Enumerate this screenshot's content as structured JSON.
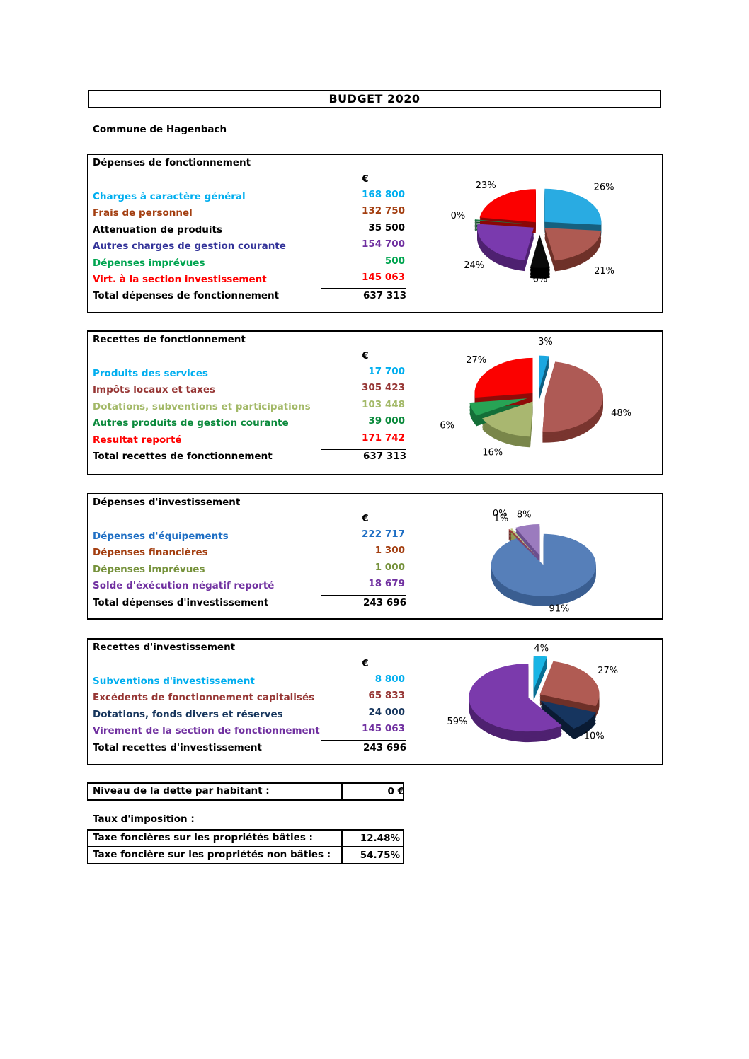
{
  "page": {
    "title": "BUDGET 2020",
    "subtitle": "Commune de Hagenbach"
  },
  "sections": [
    {
      "title": "Dépenses de fonctionnement",
      "currency": "€",
      "rows": [
        {
          "label": "Charges à caractère général",
          "value": "168 800",
          "color": "#00AEEF"
        },
        {
          "label": "Frais de personnel",
          "value": "132 750",
          "color": "#A33E10"
        },
        {
          "label": "Attenuation de produits",
          "value": "35 500",
          "color": "#000000"
        },
        {
          "label": "Autres charges de gestion courante",
          "value": "154 700",
          "color": "#333399",
          "value_color": "#7030A0"
        },
        {
          "label": "Dépenses imprévues",
          "value": "500",
          "color": "#00A550"
        },
        {
          "label": "Virt. à la section investissement",
          "value": "145 063",
          "color": "#FF0000"
        }
      ],
      "total": {
        "label": "Total dépenses de fonctionnement",
        "value": "637 313"
      },
      "chart_data": {
        "type": "pie",
        "style": "3d-exploded",
        "legend": "none",
        "title": "",
        "slices": [
          {
            "label": "Charges à caractère général",
            "value": 168800,
            "pct": "26%",
            "color": "#29ABE2",
            "dark": "#16607E"
          },
          {
            "label": "Frais de personnel",
            "value": 132750,
            "pct": "21%",
            "color": "#AE5A52",
            "dark": "#6E3129"
          },
          {
            "label": "Attenuation de produits",
            "value": 35500,
            "pct": "6%",
            "color": "#0A0A0A",
            "dark": "#000000"
          },
          {
            "label": "Autres charges de gestion courante",
            "value": 154700,
            "pct": "24%",
            "color": "#7A3AAE",
            "dark": "#4E2170"
          },
          {
            "label": "Dépenses imprévues",
            "value": 500,
            "pct": "0%",
            "color": "#1E7A46",
            "dark": "#124B2A"
          },
          {
            "label": "Virt. à la section investissement",
            "value": 145063,
            "pct": "23%",
            "color": "#FB0000",
            "dark": "#8B0707"
          }
        ]
      }
    },
    {
      "title": "Recettes de fonctionnement",
      "currency": "€",
      "rows": [
        {
          "label": "Produits des services",
          "value": "17 700",
          "color": "#00AEEF"
        },
        {
          "label": "Impôts locaux et taxes",
          "value": "305 423",
          "color": "#963634"
        },
        {
          "label": "Dotations, subventions et participations",
          "value": "103 448",
          "color": "#A3B968"
        },
        {
          "label": "Autres produits de gestion courante",
          "value": "39 000",
          "color": "#0B8A3C"
        },
        {
          "label": "Resultat reporté",
          "value": "171 742",
          "color": "#FF0000"
        }
      ],
      "total": {
        "label": "Total recettes de fonctionnement",
        "value": "637 313"
      },
      "chart_data": {
        "type": "pie",
        "style": "3d-exploded",
        "legend": "none",
        "title": "",
        "slices": [
          {
            "label": "Produits des services",
            "value": 17700,
            "pct": "3%",
            "color": "#1BA7E0",
            "dark": "#0F5F80"
          },
          {
            "label": "Impôts locaux et taxes",
            "value": 305423,
            "pct": "48%",
            "color": "#AE5A55",
            "dark": "#79352F"
          },
          {
            "label": "Dotations, subventions et participations",
            "value": 103448,
            "pct": "16%",
            "color": "#A9B770",
            "dark": "#79864A"
          },
          {
            "label": "Autres produits de gestion courante",
            "value": 39000,
            "pct": "6%",
            "color": "#27A355",
            "dark": "#156F38"
          },
          {
            "label": "Resultat reporté",
            "value": 171742,
            "pct": "27%",
            "color": "#FB0100",
            "dark": "#8F0B08"
          }
        ]
      }
    },
    {
      "title": "Dépenses d'investissement",
      "currency": "€",
      "rows": [
        {
          "label": "Dépenses d'équipements",
          "value": "222 717",
          "color": "#1F6FC4"
        },
        {
          "label": "Dépenses financières",
          "value": "1 300",
          "color": "#A33E10"
        },
        {
          "label": "Dépenses imprévues",
          "value": "1 000",
          "color": "#76923C"
        },
        {
          "label": "Solde d'éxécution négatif reporté",
          "value": "18 679",
          "color": "#7030A0"
        }
      ],
      "total": {
        "label": "Total dépenses d'investissement",
        "value": "243 696"
      },
      "chart_data": {
        "type": "pie",
        "style": "3d-exploded",
        "legend": "none",
        "title": "",
        "slices": [
          {
            "label": "Dépenses d'équipements",
            "value": 222717,
            "pct": "91%",
            "color": "#567FB9",
            "dark": "#3A5E91"
          },
          {
            "label": "Dépenses financières",
            "value": 1300,
            "pct": "1%",
            "color": "#9E3B38",
            "dark": "#6B2422"
          },
          {
            "label": "Dépenses imprévues",
            "value": 1000,
            "pct": "0%",
            "color": "#C3CC86",
            "dark": "#8F9A55"
          },
          {
            "label": "Solde d'éxécution négatif reporté",
            "value": 18679,
            "pct": "8%",
            "color": "#9B7BBE",
            "dark": "#6B4E8E"
          }
        ]
      }
    },
    {
      "title": "Recettes d'investissement",
      "currency": "€",
      "rows": [
        {
          "label": "Subventions d'investissement",
          "value": "8 800",
          "color": "#00AEEF"
        },
        {
          "label": "Excédents de fonctionnement capitalisés",
          "value": "65 833",
          "color": "#963634"
        },
        {
          "label": "Dotations, fonds divers et réserves",
          "value": "24 000",
          "color": "#17365D"
        },
        {
          "label": "Virement de la section de fonctionnement",
          "value": "145 063",
          "color": "#7030A0"
        }
      ],
      "total": {
        "label": "Total recettes d'investissement",
        "value": "243 696"
      },
      "chart_data": {
        "type": "pie",
        "style": "3d-exploded",
        "legend": "none",
        "title": "",
        "slices": [
          {
            "label": "Subventions d'investissement",
            "value": 8800,
            "pct": "4%",
            "color": "#19B5E5",
            "dark": "#0A6E93"
          },
          {
            "label": "Excédents de fonctionnement capitalisés",
            "value": 65833,
            "pct": "27%",
            "color": "#B05B53",
            "dark": "#6E3028"
          },
          {
            "label": "Dotations, fonds divers et réserves",
            "value": 24000,
            "pct": "10%",
            "color": "#16355F",
            "dark": "#0A1B33"
          },
          {
            "label": "Virement de la section de fonctionnement",
            "value": 145063,
            "pct": "59%",
            "color": "#7B3AAC",
            "dark": "#4E2170"
          }
        ]
      }
    }
  ],
  "footer": {
    "debt": {
      "label": "Niveau de la dette par habitant :",
      "value": "0 €"
    },
    "tax_header": "Taux d'imposition :",
    "taxes": [
      {
        "label": "Taxe foncières sur les propriétés bâties :",
        "value": "12.48%"
      },
      {
        "label": "Taxe foncière sur les propriétés non bâties :",
        "value": "54.75%"
      }
    ]
  }
}
